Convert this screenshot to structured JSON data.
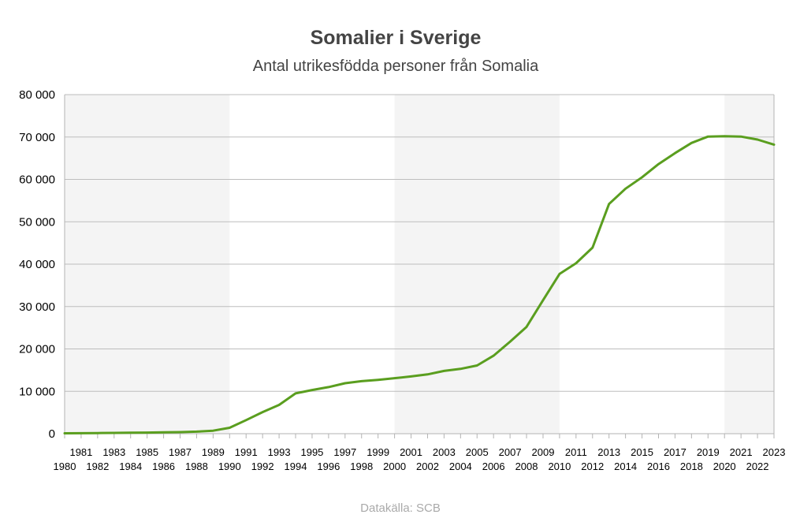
{
  "chart_data": {
    "type": "line",
    "title": "Somalier i Sverige",
    "subtitle": "Antal utrikesfödda personer från Somalia",
    "source": "Datakälla: SCB",
    "xlabel": "",
    "ylabel": "",
    "ylim": [
      0,
      80000
    ],
    "yticks": [
      0,
      10000,
      20000,
      30000,
      40000,
      50000,
      60000,
      70000,
      80000
    ],
    "ytick_labels": [
      "0",
      "10 000",
      "20 000",
      "30 000",
      "40 000",
      "50 000",
      "60 000",
      "70 000",
      "80 000"
    ],
    "shaded_decades": [
      [
        1980,
        1990
      ],
      [
        2000,
        2010
      ],
      [
        2020,
        2023
      ]
    ],
    "grid": true,
    "line_color": "#5a9e1f",
    "shade_color": "#f4f4f4",
    "x": [
      1980,
      1981,
      1982,
      1983,
      1984,
      1985,
      1986,
      1987,
      1988,
      1989,
      1990,
      1991,
      1992,
      1993,
      1994,
      1995,
      1996,
      1997,
      1998,
      1999,
      2000,
      2001,
      2002,
      2003,
      2004,
      2005,
      2006,
      2007,
      2008,
      2009,
      2010,
      2011,
      2012,
      2013,
      2014,
      2015,
      2016,
      2017,
      2018,
      2019,
      2020,
      2021,
      2022,
      2023
    ],
    "x_labels": [
      "1980",
      "1981",
      "1982",
      "1983",
      "1984",
      "1985",
      "1986",
      "1987",
      "1988",
      "1989",
      "1990",
      "1991",
      "1992",
      "1993",
      "1994",
      "1995",
      "1996",
      "1997",
      "1998",
      "1999",
      "2000",
      "2001",
      "2002",
      "2003",
      "2004",
      "2005",
      "2006",
      "2007",
      "2008",
      "2009",
      "2010",
      "2011",
      "2012",
      "2013",
      "2014",
      "2015",
      "2016",
      "2017",
      "2018",
      "2019",
      "2020",
      "2021",
      "2022",
      "2023"
    ],
    "series": [
      {
        "name": "Antal utrikesfödda personer från Somalia",
        "values": [
          100,
          120,
          150,
          180,
          220,
          260,
          310,
          380,
          480,
          700,
          1400,
          3200,
          5100,
          6800,
          9500,
          10300,
          11000,
          11900,
          12400,
          12700,
          13100,
          13500,
          14000,
          14800,
          15300,
          16100,
          18400,
          21700,
          25200,
          31500,
          37700,
          40200,
          43900,
          54200,
          57800,
          60500,
          63600,
          66200,
          68600,
          70100,
          70200,
          70100,
          69400,
          68200
        ]
      }
    ]
  }
}
